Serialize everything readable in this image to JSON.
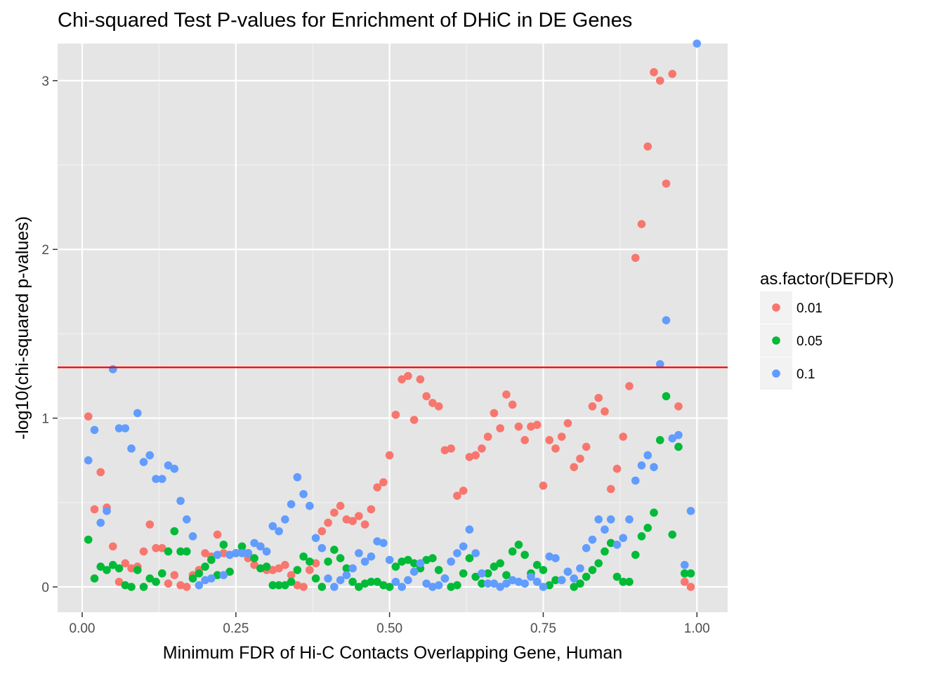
{
  "chart_data": {
    "type": "scatter",
    "title": "Chi-squared Test P-values for Enrichment of DHiC in DE Genes",
    "xlabel": "Minimum FDR of Hi-C Contacts Overlapping Gene, Human",
    "ylabel": "-log10(chi-squared p-values)",
    "xlim": [
      -0.04,
      1.05
    ],
    "ylim": [
      -0.15,
      3.22
    ],
    "x_ticks": [
      0,
      0.25,
      0.5,
      0.75,
      1.0
    ],
    "x_tick_labels": [
      "0.00",
      "0.25",
      "0.50",
      "0.75",
      "1.00"
    ],
    "y_ticks": [
      0,
      1,
      2,
      3
    ],
    "y_tick_labels": [
      "0",
      "1",
      "2",
      "3"
    ],
    "grid": true,
    "background": "#e5e5e5",
    "hline": {
      "y": 1.301,
      "color": "#ff0000"
    },
    "legend": {
      "title": "as.factor(DEFDR)",
      "position": "right"
    },
    "series": [
      {
        "name": "0.01",
        "color": "#f8766d",
        "x": [
          0.01,
          0.02,
          0.03,
          0.04,
          0.05,
          0.06,
          0.07,
          0.08,
          0.09,
          0.1,
          0.11,
          0.12,
          0.13,
          0.14,
          0.15,
          0.16,
          0.17,
          0.18,
          0.19,
          0.2,
          0.21,
          0.22,
          0.23,
          0.24,
          0.25,
          0.26,
          0.27,
          0.28,
          0.29,
          0.3,
          0.31,
          0.32,
          0.33,
          0.34,
          0.35,
          0.36,
          0.37,
          0.38,
          0.39,
          0.4,
          0.41,
          0.42,
          0.43,
          0.44,
          0.45,
          0.46,
          0.47,
          0.48,
          0.49,
          0.5,
          0.51,
          0.52,
          0.53,
          0.54,
          0.55,
          0.56,
          0.57,
          0.58,
          0.59,
          0.6,
          0.61,
          0.62,
          0.63,
          0.64,
          0.65,
          0.66,
          0.67,
          0.68,
          0.69,
          0.7,
          0.71,
          0.72,
          0.73,
          0.74,
          0.75,
          0.76,
          0.77,
          0.78,
          0.79,
          0.8,
          0.81,
          0.82,
          0.83,
          0.84,
          0.85,
          0.86,
          0.87,
          0.88,
          0.89,
          0.9,
          0.91,
          0.92,
          0.93,
          0.94,
          0.95,
          0.96,
          0.97,
          0.98,
          0.99
        ],
        "values": [
          1.01,
          0.46,
          0.68,
          0.47,
          0.24,
          0.03,
          0.14,
          0.11,
          0.12,
          0.21,
          0.37,
          0.23,
          0.23,
          0.02,
          0.07,
          0.01,
          0.0,
          0.07,
          0.1,
          0.2,
          0.18,
          0.31,
          0.2,
          0.19,
          0.2,
          0.21,
          0.17,
          0.13,
          0.24,
          0.1,
          0.1,
          0.11,
          0.13,
          0.07,
          0.01,
          0.0,
          0.1,
          0.14,
          0.33,
          0.38,
          0.44,
          0.48,
          0.4,
          0.39,
          0.42,
          0.37,
          0.46,
          0.59,
          0.62,
          0.78,
          1.02,
          1.23,
          1.25,
          0.99,
          1.23,
          1.13,
          1.09,
          1.07,
          0.81,
          0.82,
          0.54,
          0.57,
          0.77,
          0.78,
          0.82,
          0.89,
          1.03,
          0.94,
          1.14,
          1.08,
          0.95,
          0.87,
          0.95,
          0.96,
          0.6,
          0.87,
          0.82,
          0.89,
          0.97,
          0.71,
          0.76,
          0.83,
          1.07,
          1.12,
          1.04,
          0.58,
          0.7,
          0.89,
          1.19,
          1.95,
          2.15,
          2.61,
          3.05,
          3.0,
          2.39,
          3.04,
          1.07,
          0.03,
          0.0
        ]
      },
      {
        "name": "0.05",
        "color": "#00ba38",
        "x": [
          0.01,
          0.02,
          0.03,
          0.04,
          0.05,
          0.06,
          0.07,
          0.08,
          0.09,
          0.1,
          0.11,
          0.12,
          0.13,
          0.14,
          0.15,
          0.16,
          0.17,
          0.18,
          0.19,
          0.2,
          0.21,
          0.22,
          0.23,
          0.24,
          0.25,
          0.26,
          0.27,
          0.28,
          0.29,
          0.3,
          0.31,
          0.32,
          0.33,
          0.34,
          0.35,
          0.36,
          0.37,
          0.38,
          0.39,
          0.4,
          0.41,
          0.42,
          0.43,
          0.44,
          0.45,
          0.46,
          0.47,
          0.48,
          0.49,
          0.5,
          0.51,
          0.52,
          0.53,
          0.54,
          0.55,
          0.56,
          0.57,
          0.58,
          0.59,
          0.6,
          0.61,
          0.62,
          0.63,
          0.64,
          0.65,
          0.66,
          0.67,
          0.68,
          0.69,
          0.7,
          0.71,
          0.72,
          0.73,
          0.74,
          0.75,
          0.76,
          0.77,
          0.78,
          0.79,
          0.8,
          0.81,
          0.82,
          0.83,
          0.84,
          0.85,
          0.86,
          0.87,
          0.88,
          0.89,
          0.9,
          0.91,
          0.92,
          0.93,
          0.94,
          0.95,
          0.96,
          0.97,
          0.98,
          0.99
        ],
        "values": [
          0.28,
          0.05,
          0.12,
          0.1,
          0.13,
          0.11,
          0.01,
          0.0,
          0.1,
          0.0,
          0.05,
          0.03,
          0.08,
          0.21,
          0.33,
          0.21,
          0.21,
          0.05,
          0.08,
          0.12,
          0.16,
          0.07,
          0.25,
          0.09,
          0.2,
          0.24,
          0.2,
          0.17,
          0.11,
          0.12,
          0.01,
          0.01,
          0.01,
          0.03,
          0.1,
          0.18,
          0.15,
          0.05,
          0.0,
          0.15,
          0.22,
          0.17,
          0.11,
          0.03,
          0.0,
          0.02,
          0.03,
          0.03,
          0.01,
          0.0,
          0.12,
          0.15,
          0.16,
          0.14,
          0.11,
          0.16,
          0.17,
          0.1,
          0.05,
          0.0,
          0.01,
          0.08,
          0.17,
          0.06,
          0.02,
          0.08,
          0.12,
          0.14,
          0.07,
          0.21,
          0.25,
          0.19,
          0.08,
          0.13,
          0.1,
          0.01,
          0.04,
          0.04,
          0.09,
          0.0,
          0.02,
          0.06,
          0.1,
          0.14,
          0.21,
          0.26,
          0.06,
          0.03,
          0.03,
          0.19,
          0.3,
          0.35,
          0.44,
          0.87,
          1.13,
          0.31,
          0.83,
          0.08,
          0.08
        ]
      },
      {
        "name": "0.1",
        "color": "#619cff",
        "x": [
          0.01,
          0.02,
          0.03,
          0.04,
          0.05,
          0.06,
          0.07,
          0.08,
          0.09,
          0.1,
          0.11,
          0.12,
          0.13,
          0.14,
          0.15,
          0.16,
          0.17,
          0.18,
          0.19,
          0.2,
          0.21,
          0.22,
          0.23,
          0.24,
          0.25,
          0.26,
          0.27,
          0.28,
          0.29,
          0.3,
          0.31,
          0.32,
          0.33,
          0.34,
          0.35,
          0.36,
          0.37,
          0.38,
          0.39,
          0.4,
          0.41,
          0.42,
          0.43,
          0.44,
          0.45,
          0.46,
          0.47,
          0.48,
          0.49,
          0.5,
          0.51,
          0.52,
          0.53,
          0.54,
          0.55,
          0.56,
          0.57,
          0.58,
          0.59,
          0.6,
          0.61,
          0.62,
          0.63,
          0.64,
          0.65,
          0.66,
          0.67,
          0.68,
          0.69,
          0.7,
          0.71,
          0.72,
          0.73,
          0.74,
          0.75,
          0.76,
          0.77,
          0.78,
          0.79,
          0.8,
          0.81,
          0.82,
          0.83,
          0.84,
          0.85,
          0.86,
          0.87,
          0.88,
          0.89,
          0.9,
          0.91,
          0.92,
          0.93,
          0.94,
          0.95,
          0.96,
          0.97,
          0.98,
          0.99,
          1.0
        ],
        "values": [
          0.75,
          0.93,
          0.38,
          0.45,
          1.29,
          0.94,
          0.94,
          0.82,
          1.03,
          0.74,
          0.78,
          0.64,
          0.64,
          0.72,
          0.7,
          0.51,
          0.4,
          0.3,
          0.01,
          0.04,
          0.05,
          0.19,
          0.07,
          0.19,
          0.2,
          0.2,
          0.2,
          0.26,
          0.24,
          0.21,
          0.36,
          0.33,
          0.4,
          0.49,
          0.65,
          0.55,
          0.48,
          0.29,
          0.23,
          0.05,
          0.0,
          0.04,
          0.07,
          0.11,
          0.2,
          0.15,
          0.18,
          0.27,
          0.26,
          0.16,
          0.03,
          0.0,
          0.04,
          0.09,
          0.14,
          0.02,
          0.0,
          0.01,
          0.05,
          0.15,
          0.2,
          0.24,
          0.34,
          0.2,
          0.08,
          0.02,
          0.02,
          0.0,
          0.02,
          0.04,
          0.03,
          0.02,
          0.06,
          0.03,
          0.0,
          0.18,
          0.17,
          0.04,
          0.09,
          0.05,
          0.11,
          0.23,
          0.28,
          0.4,
          0.34,
          0.4,
          0.25,
          0.29,
          0.4,
          0.63,
          0.72,
          0.78,
          0.71,
          1.32,
          1.58,
          0.88,
          0.9,
          0.13,
          0.45,
          3.22
        ]
      }
    ]
  }
}
